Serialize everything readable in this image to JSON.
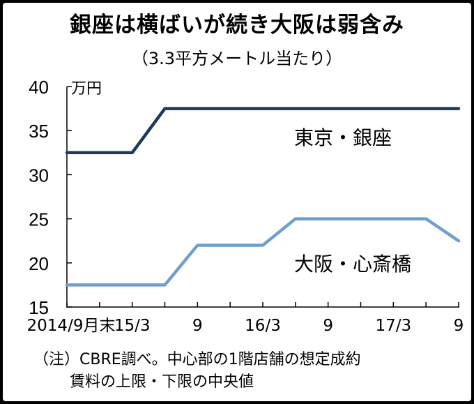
{
  "chart_data": {
    "type": "line",
    "title": "銀座は横ばいが続き大阪は弱含み",
    "subtitle": "（3.3平方メートル当たり）",
    "ylabel": "万円",
    "ylim": [
      15,
      40
    ],
    "yticks": [
      "40",
      "35",
      "30",
      "25",
      "20",
      "15"
    ],
    "ytick_values": [
      40,
      35,
      30,
      25,
      20,
      15
    ],
    "x_periods": [
      "2014/9",
      "2014/12",
      "2015/3",
      "2015/6",
      "2015/9",
      "2015/12",
      "2016/3",
      "2016/6",
      "2016/9",
      "2016/12",
      "2017/3",
      "2017/6",
      "2017/9"
    ],
    "xtick_labels": [
      {
        "period": "2014/9",
        "label": "2014/9月末"
      },
      {
        "period": "2015/3",
        "label": "15/3"
      },
      {
        "period": "2015/9",
        "label": "9"
      },
      {
        "period": "2016/3",
        "label": "16/3"
      },
      {
        "period": "2016/9",
        "label": "9"
      },
      {
        "period": "2017/3",
        "label": "17/3"
      },
      {
        "period": "2017/9",
        "label": "9"
      }
    ],
    "series": [
      {
        "name": "東京・銀座",
        "color": "#1b3a5c",
        "values": [
          32.5,
          32.5,
          32.5,
          37.5,
          37.5,
          37.5,
          37.5,
          37.5,
          37.5,
          37.5,
          37.5,
          37.5,
          37.5
        ]
      },
      {
        "name": "大阪・心斎橋",
        "color": "#6f9fcf",
        "values": [
          17.5,
          17.5,
          17.5,
          17.5,
          22,
          22,
          22,
          25,
          25,
          25,
          25,
          25,
          22.5
        ]
      }
    ],
    "grid": false,
    "legend": "inline labels"
  },
  "notes": {
    "line1": "（注）CBRE調べ。中心部の1階店舗の想定成約",
    "line2": "賃料の上限・下限の中央値"
  }
}
